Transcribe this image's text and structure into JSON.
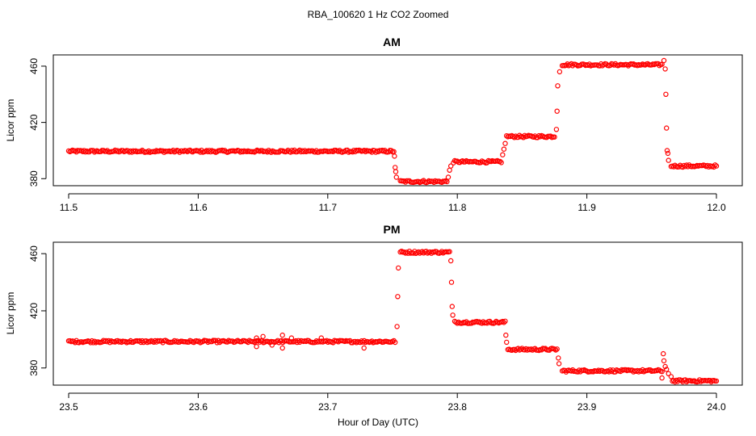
{
  "chart_data": {
    "title": "RBA_100620  1 Hz CO2 Zoomed",
    "xlabel": "Hour of Day (UTC)",
    "marker_color": "#ff0000",
    "panels": [
      {
        "type": "scatter",
        "title": "AM",
        "ylabel": "Licor ppm",
        "xlim": [
          11.5,
          12.0
        ],
        "ylim": [
          375,
          468
        ],
        "xticks": [
          "11.5",
          "11.6",
          "11.7",
          "11.8",
          "11.9",
          "12.0"
        ],
        "yticks": [
          "380",
          "420",
          "460"
        ],
        "segments": [
          {
            "x": [
              11.5,
              11.751
            ],
            "y": 399.5
          },
          {
            "x": [
              11.756,
              11.792
            ],
            "y": 378
          },
          {
            "x": [
              11.797,
              11.834
            ],
            "y": 392
          },
          {
            "x": [
              11.838,
              11.875
            ],
            "y": 410
          },
          {
            "x": [
              11.881,
              11.958
            ],
            "y": 461
          },
          {
            "x": [
              11.965,
              12.0
            ],
            "y": 389
          }
        ],
        "transitions": [
          {
            "x": 11.7515,
            "y": 396
          },
          {
            "x": 11.752,
            "y": 388
          },
          {
            "x": 11.7525,
            "y": 385
          },
          {
            "x": 11.753,
            "y": 381
          },
          {
            "x": 11.793,
            "y": 381
          },
          {
            "x": 11.794,
            "y": 386
          },
          {
            "x": 11.795,
            "y": 389
          },
          {
            "x": 11.835,
            "y": 397
          },
          {
            "x": 11.836,
            "y": 401
          },
          {
            "x": 11.837,
            "y": 405
          },
          {
            "x": 11.8765,
            "y": 415
          },
          {
            "x": 11.877,
            "y": 428
          },
          {
            "x": 11.8775,
            "y": 446
          },
          {
            "x": 11.879,
            "y": 456
          },
          {
            "x": 11.9595,
            "y": 464
          },
          {
            "x": 11.9605,
            "y": 458
          },
          {
            "x": 11.961,
            "y": 440
          },
          {
            "x": 11.9615,
            "y": 416
          },
          {
            "x": 11.962,
            "y": 400
          },
          {
            "x": 11.9625,
            "y": 398
          },
          {
            "x": 11.963,
            "y": 393
          }
        ]
      },
      {
        "type": "scatter",
        "title": "PM",
        "ylabel": "Licor ppm",
        "xlim": [
          23.5,
          24.0
        ],
        "ylim": [
          368,
          468
        ],
        "xticks": [
          "23.5",
          "23.6",
          "23.7",
          "23.8",
          "23.9",
          "24.0"
        ],
        "yticks": [
          "380",
          "420",
          "460"
        ],
        "segments": [
          {
            "x": [
              23.5,
              23.752
            ],
            "y": 398.5
          },
          {
            "x": [
              23.756,
              23.794
            ],
            "y": 461
          },
          {
            "x": [
              23.798,
              23.837
            ],
            "y": 412
          },
          {
            "x": [
              23.839,
              23.877
            ],
            "y": 393
          },
          {
            "x": [
              23.881,
              23.958
            ],
            "y": 378
          },
          {
            "x": [
              23.966,
              24.0
            ],
            "y": 371
          }
        ],
        "transitions": [
          {
            "x": 23.7535,
            "y": 409
          },
          {
            "x": 23.754,
            "y": 430
          },
          {
            "x": 23.7545,
            "y": 450
          },
          {
            "x": 23.795,
            "y": 455
          },
          {
            "x": 23.7955,
            "y": 440
          },
          {
            "x": 23.796,
            "y": 423
          },
          {
            "x": 23.7965,
            "y": 417
          },
          {
            "x": 23.8375,
            "y": 403
          },
          {
            "x": 23.838,
            "y": 398
          },
          {
            "x": 23.878,
            "y": 387
          },
          {
            "x": 23.8785,
            "y": 383
          },
          {
            "x": 23.959,
            "y": 390
          },
          {
            "x": 23.9595,
            "y": 385
          },
          {
            "x": 23.9605,
            "y": 381
          },
          {
            "x": 23.9615,
            "y": 379
          },
          {
            "x": 23.963,
            "y": 376
          },
          {
            "x": 23.965,
            "y": 374
          },
          {
            "x": 23.958,
            "y": 373
          },
          {
            "x": 23.645,
            "y": 401
          },
          {
            "x": 23.65,
            "y": 402
          },
          {
            "x": 23.645,
            "y": 395
          },
          {
            "x": 23.665,
            "y": 403
          },
          {
            "x": 23.665,
            "y": 394
          },
          {
            "x": 23.672,
            "y": 401
          },
          {
            "x": 23.657,
            "y": 396
          },
          {
            "x": 23.728,
            "y": 394
          },
          {
            "x": 23.695,
            "y": 401
          }
        ]
      }
    ]
  }
}
